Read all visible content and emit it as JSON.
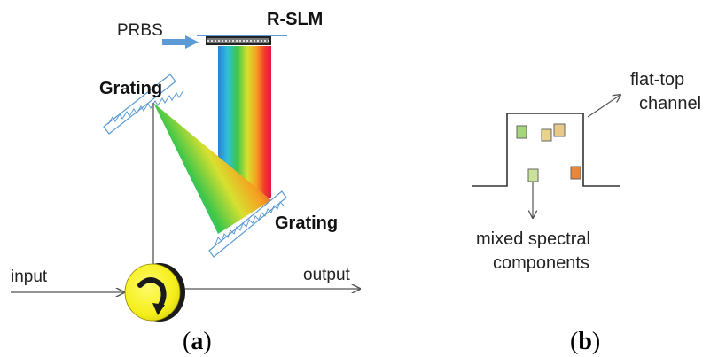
{
  "panel_a": {
    "prbs": "PRBS",
    "rslm": "R-SLM",
    "grating_top": "Grating",
    "grating_bottom": "Grating",
    "input": "input",
    "output": "output",
    "caption_open": "(",
    "caption_letter": "a",
    "caption_close": ")"
  },
  "panel_b": {
    "flat_top_line1": "flat-top",
    "flat_top_line2": "channel",
    "mixed_line1": "mixed spectral",
    "mixed_line2": "components",
    "caption_open": "(",
    "caption_letter": "b",
    "caption_close": ")",
    "component_colors": [
      "#a6d67a",
      "#e9d28a",
      "#e9c98a",
      "#c9e49a",
      "#e8873a"
    ]
  },
  "colors": {
    "prbs_arrow": "#5b9bd5",
    "grating_outline": "#5b9bd5",
    "circulator": "#f5ee1a"
  }
}
